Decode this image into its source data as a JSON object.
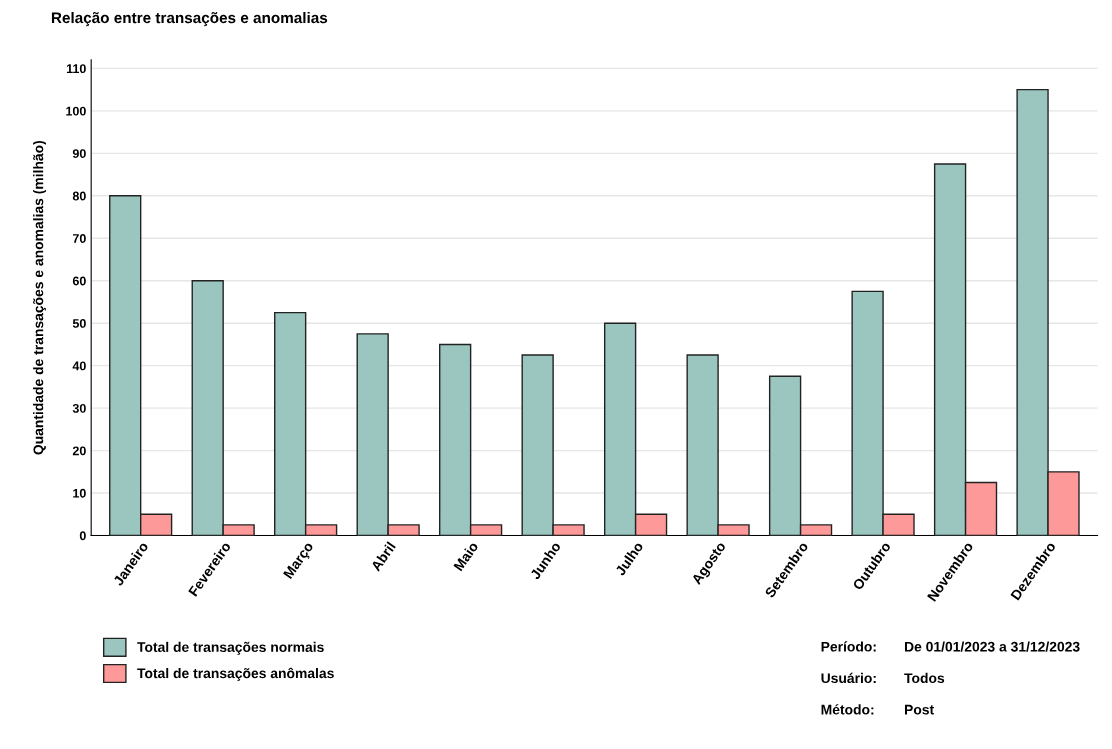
{
  "chart_data": {
    "type": "bar",
    "title": "Relação entre transações e anomalias",
    "ylabel": "Quantidade de transações e anomalias (milhão)",
    "categories": [
      "Janeiro",
      "Fevereiro",
      "Março",
      "Abril",
      "Maio",
      "Junho",
      "Julho",
      "Agosto",
      "Setembro",
      "Outubro",
      "Novembro",
      "Dezembro"
    ],
    "series": [
      {
        "name": "Total de transações normais",
        "color": "#9ac6bf",
        "values": [
          80,
          60,
          52.5,
          47.5,
          45,
          42.5,
          50,
          42.5,
          37.5,
          57.5,
          87.5,
          105
        ]
      },
      {
        "name": "Total de transações anômalas",
        "color": "#fd9a99",
        "values": [
          5,
          2.5,
          2.5,
          2.5,
          2.5,
          2.5,
          5,
          2.5,
          2.5,
          5,
          12.5,
          15
        ]
      }
    ],
    "ylim": [
      0,
      112
    ],
    "yticks": [
      0,
      10,
      20,
      30,
      40,
      50,
      60,
      70,
      80,
      90,
      100,
      110
    ],
    "grid": "y",
    "legend": "bottom left",
    "annotations": [
      "Período: De 01/01/2023 a 31/12/2023",
      "Usuário: Todos",
      "Método: Post"
    ]
  }
}
